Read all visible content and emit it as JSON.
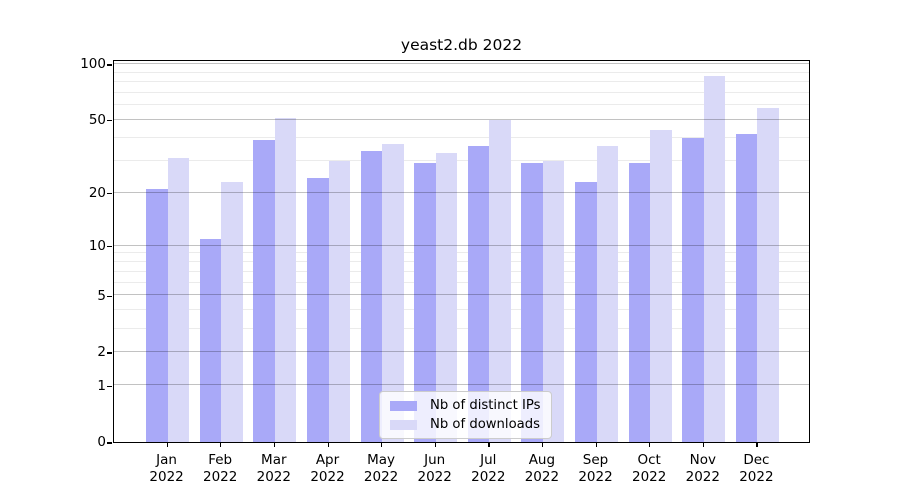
{
  "chart_data": {
    "type": "bar",
    "title": "yeast2.db 2022",
    "categories": [
      "Jan",
      "Feb",
      "Mar",
      "Apr",
      "May",
      "Jun",
      "Jul",
      "Aug",
      "Sep",
      "Oct",
      "Nov",
      "Dec"
    ],
    "category_year": "2022",
    "series": [
      {
        "name": "Nb of distinct IPs",
        "color": "#a9a9f8",
        "values": [
          21,
          11,
          39,
          24,
          34,
          29,
          36,
          29,
          23,
          29,
          40,
          42
        ]
      },
      {
        "name": "Nb of downloads",
        "color": "#d9d9f8",
        "values": [
          31,
          23,
          51,
          30,
          37,
          33,
          50,
          30,
          36,
          44,
          86,
          58
        ]
      }
    ],
    "y_scale": "log1p",
    "y_ticks": [
      0,
      1,
      2,
      5,
      10,
      20,
      50,
      100
    ],
    "y_minor_gridlines": [
      3,
      4,
      6,
      7,
      8,
      9,
      30,
      40,
      60,
      70,
      80,
      90
    ],
    "ylim": [
      0,
      105
    ],
    "xlabel": "",
    "ylabel": "",
    "grid": true,
    "legend_position": "lower center",
    "legend": [
      "Nb of distinct IPs",
      "Nb of downloads"
    ]
  }
}
